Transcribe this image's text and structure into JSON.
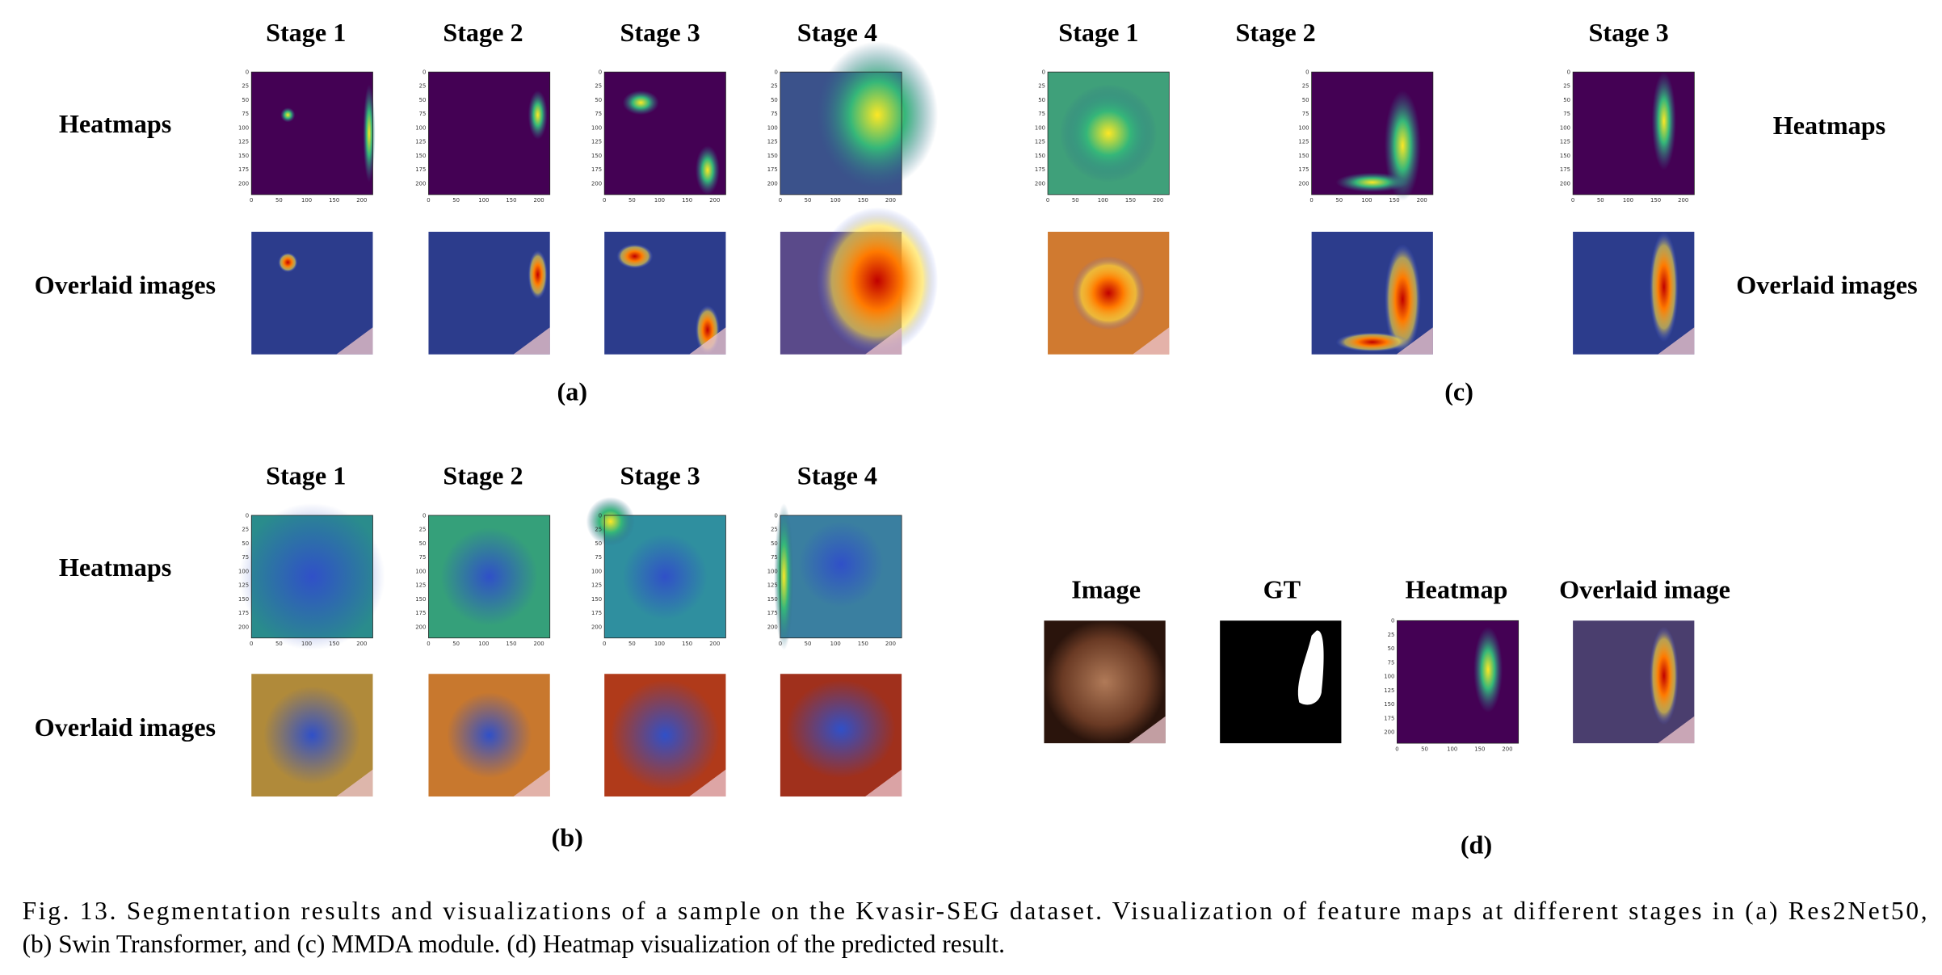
{
  "panels": [
    {
      "label": "(a)",
      "column_headers": [
        "Stage 1",
        "Stage 2",
        "Stage 3",
        "Stage 4"
      ],
      "row_labels": [
        "Heatmaps",
        "Overlaid images"
      ]
    },
    {
      "label": "(b)",
      "column_headers": [
        "Stage 1",
        "Stage 2",
        "Stage 3",
        "Stage 4"
      ],
      "row_labels": [
        "Heatmaps",
        "Overlaid images"
      ]
    },
    {
      "label": "(c)",
      "column_headers": [
        "Stage 1",
        "Stage 2",
        "Stage 3"
      ],
      "row_labels": [
        "Heatmaps",
        "Overlaid images"
      ]
    },
    {
      "label": "(d)",
      "column_headers": [
        "Image",
        "GT",
        "Heatmap",
        "Overlaid image"
      ]
    }
  ],
  "heatmap_axis": {
    "y_ticks": [
      0,
      25,
      50,
      75,
      100,
      125,
      150,
      175,
      200
    ],
    "x_ticks": [
      0,
      50,
      100,
      150,
      200
    ]
  },
  "caption": [
    "Fig. 13.   Segmentation results and visualizations of a sample on the Kvasir-SEG dataset. Visualization of feature maps at different stages in (a) Res2Net50,",
    "(b) Swin Transformer, and (c) MMDA module. (d) Heatmap visualization of the predicted result."
  ]
}
